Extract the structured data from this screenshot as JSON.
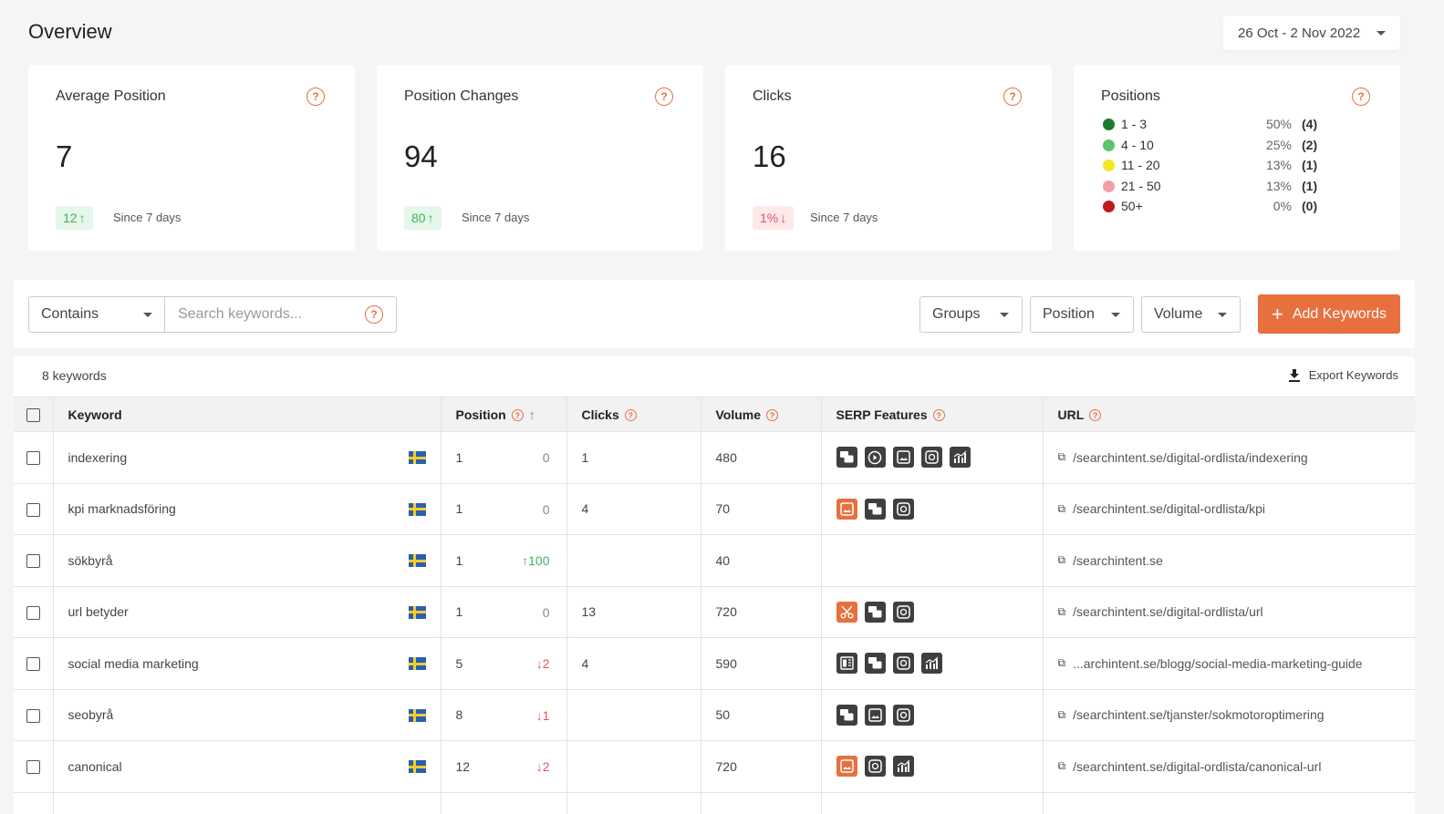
{
  "header": {
    "title": "Overview",
    "date_range": "26 Oct - 2 Nov 2022"
  },
  "cards": {
    "avg_position": {
      "title": "Average Position",
      "value": "7",
      "delta": "12",
      "direction": "up",
      "since": "Since 7 days"
    },
    "position_changes": {
      "title": "Position Changes",
      "value": "94",
      "delta": "80",
      "direction": "up",
      "since": "Since 7 days"
    },
    "clicks": {
      "title": "Clicks",
      "value": "16",
      "delta": "1%",
      "direction": "down",
      "since": "Since 7 days"
    },
    "positions": {
      "title": "Positions",
      "rows": [
        {
          "range": "1 - 3",
          "pct": "50%",
          "count": "(4)",
          "color": "#1e7a2e"
        },
        {
          "range": "4 - 10",
          "pct": "25%",
          "count": "(2)",
          "color": "#5cc46a"
        },
        {
          "range": "11 - 20",
          "pct": "13%",
          "count": "(1)",
          "color": "#f5e62a"
        },
        {
          "range": "21 - 50",
          "pct": "13%",
          "count": "(1)",
          "color": "#f0a0a5"
        },
        {
          "range": "50+",
          "pct": "0%",
          "count": "(0)",
          "color": "#c0191f"
        }
      ]
    }
  },
  "filters": {
    "match_mode": "Contains",
    "search_placeholder": "Search keywords...",
    "groups_label": "Groups",
    "position_label": "Position",
    "volume_label": "Volume",
    "add_label": "Add Keywords"
  },
  "table": {
    "count_label": "8 keywords",
    "export_label": "Export Keywords",
    "columns": {
      "keyword": "Keyword",
      "position": "Position",
      "clicks": "Clicks",
      "volume": "Volume",
      "serp": "SERP Features",
      "url": "URL"
    },
    "rows": [
      {
        "keyword": "indexering",
        "position": "1",
        "change": "0",
        "change_dir": "zero",
        "clicks": "1",
        "volume": "480",
        "serp": [
          "faq-icon",
          "video-icon",
          "image-pack-icon",
          "image-icon",
          "stats-icon"
        ],
        "serp_highlight": [],
        "url": "/searchintent.se/digital-ordlista/indexering"
      },
      {
        "keyword": "kpi marknadsföring",
        "position": "1",
        "change": "0",
        "change_dir": "zero",
        "clicks": "4",
        "volume": "70",
        "serp": [
          "image-pack-icon",
          "faq-icon",
          "image-icon"
        ],
        "serp_highlight": [
          0
        ],
        "url": "/searchintent.se/digital-ordlista/kpi"
      },
      {
        "keyword": "sökbyrå",
        "position": "1",
        "change": "100",
        "change_dir": "up",
        "clicks": "",
        "volume": "40",
        "serp": [],
        "serp_highlight": [],
        "url": "/searchintent.se"
      },
      {
        "keyword": "url betyder",
        "position": "1",
        "change": "0",
        "change_dir": "zero",
        "clicks": "13",
        "volume": "720",
        "serp": [
          "snippet-icon",
          "faq-icon",
          "image-icon"
        ],
        "serp_highlight": [
          0
        ],
        "url": "/searchintent.se/digital-ordlista/url"
      },
      {
        "keyword": "social media marketing",
        "position": "5",
        "change": "2",
        "change_dir": "down",
        "clicks": "4",
        "volume": "590",
        "serp": [
          "article-icon",
          "faq-icon",
          "image-icon",
          "stats-icon"
        ],
        "serp_highlight": [],
        "url": "...archintent.se/blogg/social-media-marketing-guide"
      },
      {
        "keyword": "seobyrå",
        "position": "8",
        "change": "1",
        "change_dir": "down",
        "clicks": "",
        "volume": "50",
        "serp": [
          "faq-icon",
          "image-pack-icon",
          "image-icon"
        ],
        "serp_highlight": [],
        "url": "/searchintent.se/tjanster/sokmotoroptimering"
      },
      {
        "keyword": "canonical",
        "position": "12",
        "change": "2",
        "change_dir": "down",
        "clicks": "",
        "volume": "720",
        "serp": [
          "image-pack-icon",
          "image-icon",
          "stats-icon"
        ],
        "serp_highlight": [
          0
        ],
        "url": "/searchintent.se/digital-ordlista/canonical-url"
      }
    ]
  },
  "colors": {
    "accent": "#e8703e",
    "up": "#3fb35c",
    "down": "#e05562"
  }
}
